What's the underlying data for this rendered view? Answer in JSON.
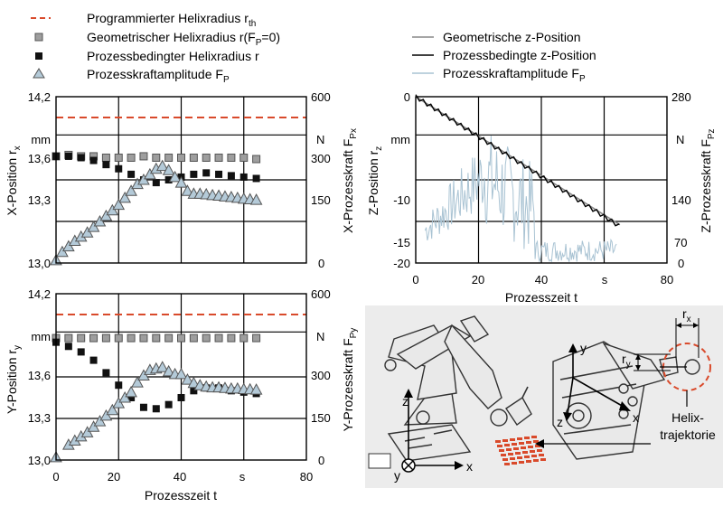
{
  "legend_left": [
    {
      "label": "Programmierter Helixradius r",
      "sub": "th",
      "tail": "",
      "color": "#d94a2b"
    },
    {
      "label": "Geometrischer Helixradius r(F",
      "sub": "P",
      "tail": "=0)",
      "color": "#999999"
    },
    {
      "label": "Prozessbedingter Helixradius r",
      "sub": "",
      "tail": "",
      "color": "#111111"
    },
    {
      "label": "Prozesskraftamplitude F",
      "sub": "P",
      "tail": "",
      "color": "#b4cad8"
    }
  ],
  "legend_right": [
    {
      "label": "Geometrische z-Position",
      "sub": "",
      "color": "#888888"
    },
    {
      "label": "Prozessbedingte z-Position",
      "sub": "",
      "color": "#000000"
    },
    {
      "label": "Prozesskraftamplitude F",
      "sub": "P",
      "color": "#a9c3d3"
    }
  ],
  "chart_data": [
    {
      "type": "line",
      "id": "x_position",
      "ylabel": "X-Position r",
      "ylabel_sub": "x",
      "yunit": "mm",
      "y2label": "X-Prozesskraft F",
      "y2label_sub": "Px",
      "y2unit": "N",
      "yticks": [
        "14,2",
        "13,6",
        "13,3",
        "13,0"
      ],
      "y2ticks": [
        "600",
        "300",
        "150",
        "0"
      ],
      "xticks": [
        "0",
        "20",
        "40",
        "s",
        "80"
      ],
      "xlim": [
        0,
        80
      ],
      "ylim": [
        13.0,
        14.2
      ],
      "y2lim": [
        0,
        600
      ],
      "series": [
        {
          "name": "Programmierter Helixradius r_th",
          "constant": 14.05
        },
        {
          "name": "Geometrischer Helixradius r(F_P=0)",
          "x": [
            0,
            4,
            8,
            12,
            16,
            20,
            24,
            28,
            32,
            36,
            40,
            44,
            48,
            52,
            56,
            60,
            64
          ],
          "values": [
            13.77,
            13.78,
            13.77,
            13.77,
            13.76,
            13.76,
            13.76,
            13.77,
            13.76,
            13.76,
            13.76,
            13.76,
            13.76,
            13.76,
            13.76,
            13.76,
            13.75
          ]
        },
        {
          "name": "Prozessbedingter Helixradius r",
          "x": [
            0,
            4,
            8,
            12,
            16,
            20,
            24,
            28,
            32,
            36,
            40,
            44,
            48,
            52,
            56,
            60,
            64
          ],
          "values": [
            13.77,
            13.77,
            13.76,
            13.74,
            13.71,
            13.68,
            13.64,
            13.6,
            13.58,
            13.6,
            13.62,
            13.64,
            13.65,
            13.64,
            13.63,
            13.62,
            13.61
          ]
        },
        {
          "name": "Prozesskraftamplitude F_P",
          "x": [
            0,
            2,
            4,
            6,
            8,
            10,
            12,
            14,
            16,
            18,
            20,
            22,
            24,
            26,
            28,
            30,
            32,
            34,
            36,
            38,
            40,
            42,
            44,
            46,
            48,
            50,
            52,
            54,
            56,
            58,
            60,
            62,
            64
          ],
          "values": [
            10,
            40,
            60,
            80,
            95,
            110,
            130,
            150,
            170,
            190,
            210,
            235,
            260,
            285,
            300,
            320,
            340,
            350,
            335,
            310,
            290,
            260,
            250,
            250,
            248,
            245,
            243,
            240,
            238,
            235,
            232,
            230,
            228
          ]
        }
      ]
    },
    {
      "type": "line",
      "id": "y_position",
      "ylabel": "Y-Position r",
      "ylabel_sub": "y",
      "yunit": "mm",
      "y2label": "Y-Prozesskraft F",
      "y2label_sub": "Py",
      "y2unit": "N",
      "yticks": [
        "14,2",
        "13,6",
        "13,3",
        "13,0"
      ],
      "y2ticks": [
        "600",
        "300",
        "150",
        "0"
      ],
      "xticks": [
        "0",
        "20",
        "40",
        "s",
        "80"
      ],
      "xlim": [
        0,
        80
      ],
      "ylim": [
        13.0,
        14.2
      ],
      "y2lim": [
        0,
        600
      ],
      "xlabel": "Prozesszeit t",
      "series": [
        {
          "name": "Programmierter Helixradius r_th",
          "constant": 14.05
        },
        {
          "name": "Geometrischer Helixradius r(F_P=0)",
          "x": [
            0,
            4,
            8,
            12,
            16,
            20,
            24,
            28,
            32,
            36,
            40,
            44,
            48,
            52,
            56,
            60,
            64
          ],
          "values": [
            13.88,
            13.88,
            13.88,
            13.88,
            13.88,
            13.88,
            13.88,
            13.88,
            13.88,
            13.88,
            13.88,
            13.88,
            13.88,
            13.88,
            13.88,
            13.88,
            13.88
          ]
        },
        {
          "name": "Prozessbedingter Helixradius r",
          "x": [
            0,
            4,
            8,
            12,
            16,
            20,
            24,
            28,
            32,
            36,
            40,
            44,
            48,
            52,
            56,
            60,
            64
          ],
          "values": [
            13.85,
            13.82,
            13.78,
            13.72,
            13.63,
            13.54,
            13.45,
            13.38,
            13.37,
            13.4,
            13.45,
            13.5,
            13.52,
            13.52,
            13.5,
            13.49,
            13.48
          ]
        },
        {
          "name": "Prozesskraftamplitude F_P",
          "x": [
            0,
            4,
            6,
            8,
            10,
            12,
            14,
            16,
            18,
            20,
            22,
            24,
            26,
            28,
            30,
            32,
            34,
            36,
            38,
            40,
            42,
            44,
            46,
            48,
            50,
            52,
            54,
            56,
            58,
            60,
            62,
            64
          ],
          "values": [
            10,
            55,
            70,
            85,
            100,
            120,
            140,
            160,
            180,
            205,
            225,
            245,
            280,
            305,
            325,
            330,
            335,
            320,
            310,
            310,
            290,
            278,
            270,
            265,
            262,
            262,
            260,
            258,
            258,
            256,
            255,
            254
          ]
        }
      ]
    },
    {
      "type": "line",
      "id": "z_position",
      "ylabel": "Z-Position r",
      "ylabel_sub": "z",
      "yunit": "mm",
      "y2label": "Z-Prozesskraft F",
      "y2label_sub": "Pz",
      "y2unit": "N",
      "yticks": [
        "0",
        "-10",
        "-15",
        "-20"
      ],
      "y2ticks": [
        "280",
        "140",
        "70",
        "0"
      ],
      "xticks": [
        "0",
        "20",
        "40",
        "s",
        "80"
      ],
      "xlim": [
        0,
        80
      ],
      "ylim": [
        -20,
        0
      ],
      "y2lim": [
        0,
        280
      ],
      "xlabel": "Prozesszeit t",
      "series": [
        {
          "name": "Geometrische z-Position",
          "x": [
            0,
            65
          ],
          "values": [
            0,
            -15.4
          ]
        },
        {
          "name": "Prozessbedingte z-Position",
          "x": [
            0,
            65
          ],
          "values": [
            0,
            -15.6
          ]
        },
        {
          "name": "Prozesskraftamplitude F_P",
          "envelope": true
        }
      ]
    }
  ],
  "diagram": {
    "labels": {
      "rx": "r",
      "rx_sub": "x",
      "ry": "r",
      "ry_sub": "y",
      "x": "x",
      "y": "y",
      "z": "z",
      "helix_line1": "Helix-",
      "helix_line2": "trajektorie"
    },
    "accent": "#d94a2b"
  }
}
